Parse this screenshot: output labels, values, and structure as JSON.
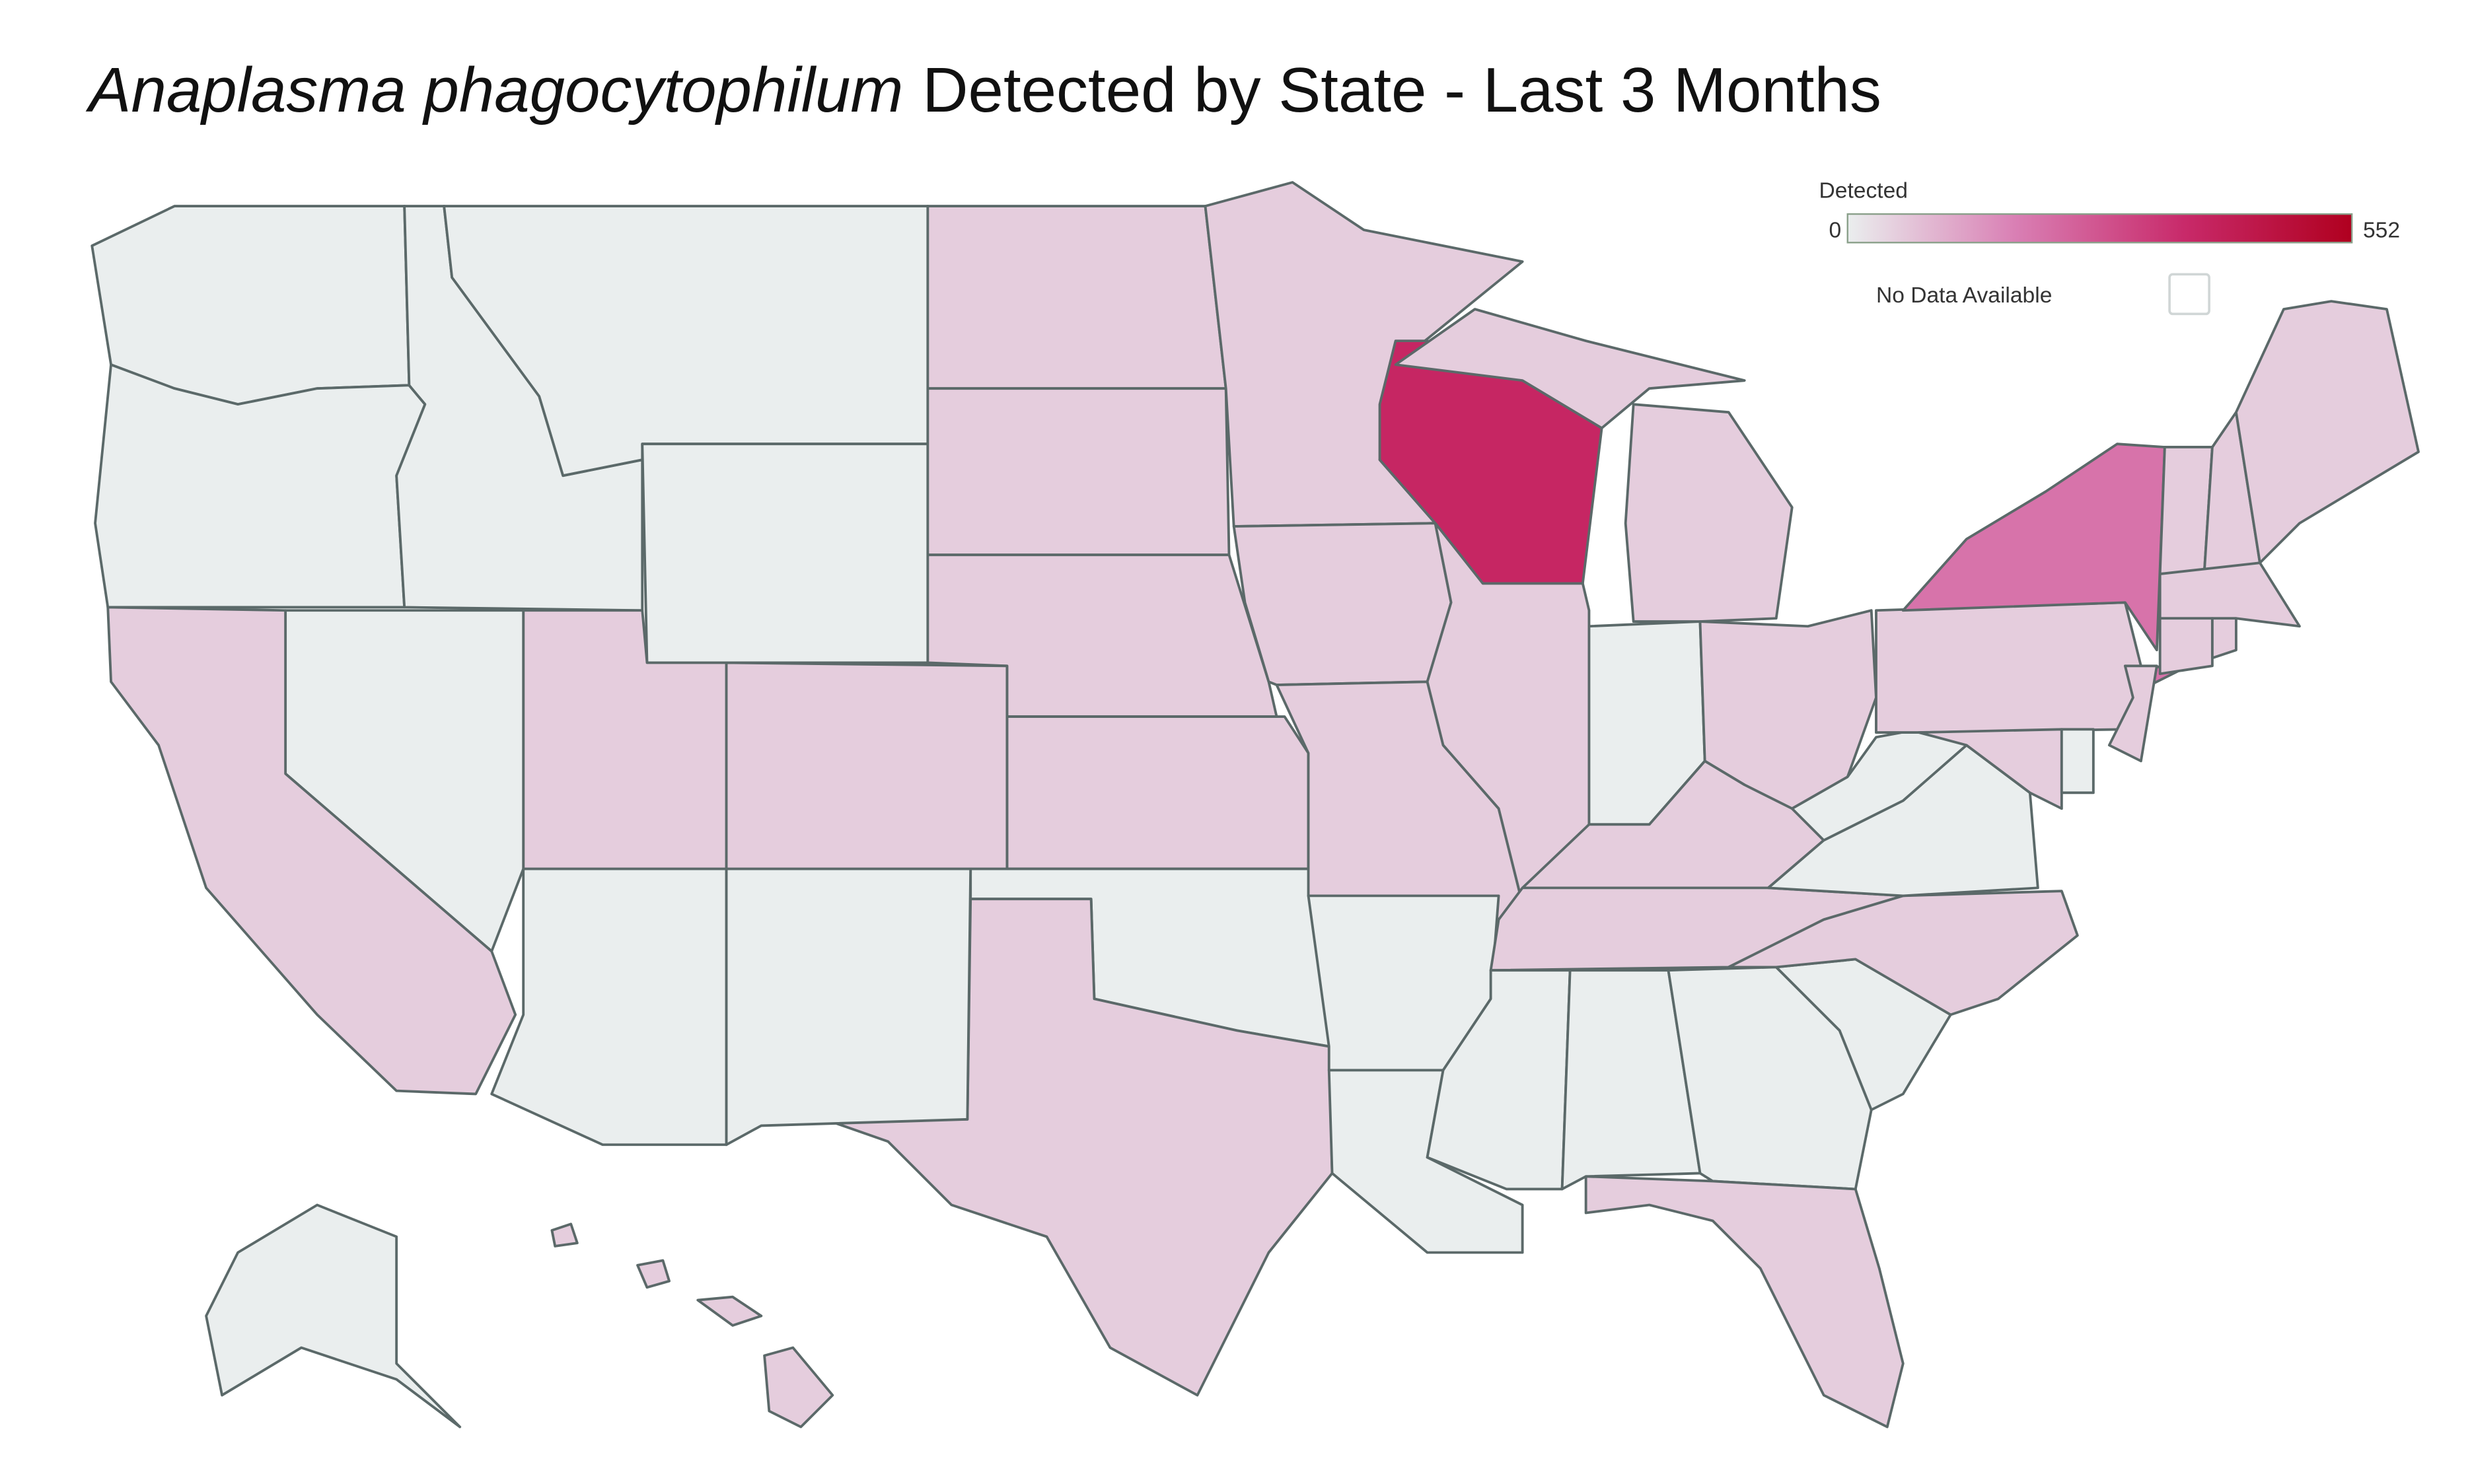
{
  "chart_data": {
    "type": "choropleth",
    "title": [
      "Anaplasma phagocytophilum",
      "Detected by State - Last 3 Months"
    ],
    "values": [
      0,
      0,
      0,
      0,
      0,
      55,
      55,
      55,
      55,
      0,
      55,
      0,
      0,
      55,
      55,
      0,
      55,
      55,
      55,
      55,
      0,
      0,
      386,
      55,
      0,
      55,
      55,
      55,
      55,
      0,
      0,
      0,
      55,
      0,
      55,
      0,
      0,
      55,
      210,
      55,
      55,
      0,
      55,
      55,
      55,
      55,
      55,
      55,
      0,
      55
    ],
    "colorbar": {
      "title": "Detected",
      "min": 0,
      "max": 552,
      "ticks": [
        0,
        552
      ]
    },
    "colors": [
      "#eaeeee",
      "#d97fb4",
      "#c82a6a",
      "#b0001f"
    ],
    "no_data_label": "No Data Available",
    "no_data_color": "#ffffff"
  }
}
